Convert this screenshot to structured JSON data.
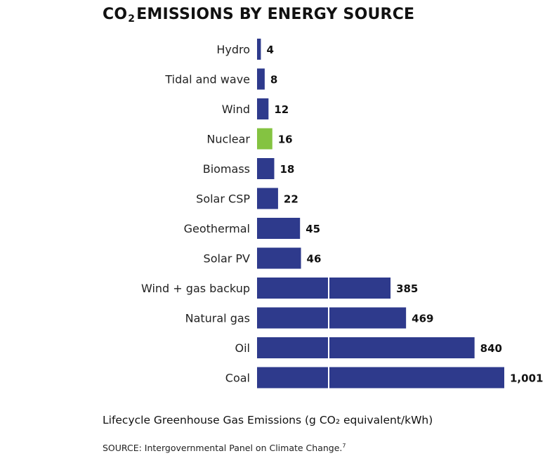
{
  "chart_data": {
    "type": "bar",
    "orientation": "horizontal",
    "title_prefix": "CO",
    "title_subscript": "2",
    "title_suffix": "EMISSIONS BY ENERGY SOURCE",
    "xlabel": "Lifecycle Greenhouse Gas Emissions (g CO₂ equivalent/kWh)",
    "source": "SOURCE: Intergovernmental Panel on Climate Change.",
    "source_footnote": "7",
    "categories": [
      "Hydro",
      "Tidal and wave",
      "Wind",
      "Nuclear",
      "Biomass",
      "Solar CSP",
      "Geothermal",
      "Solar PV",
      "Wind + gas backup",
      "Natural gas",
      "Oil",
      "Coal"
    ],
    "values": [
      4,
      8,
      12,
      16,
      18,
      22,
      45,
      46,
      385,
      469,
      840,
      1001
    ],
    "value_labels": [
      "4",
      "8",
      "12",
      "16",
      "18",
      "22",
      "45",
      "46",
      "385",
      "469",
      "840",
      "1,001"
    ],
    "highlight_category": "Nuclear",
    "axis_break_after": 50,
    "xlim": [
      0,
      1001
    ],
    "grid": false,
    "colors": {
      "bar": "#2e3a8c",
      "highlight": "#84c341",
      "break_line": "#ffffff"
    }
  }
}
